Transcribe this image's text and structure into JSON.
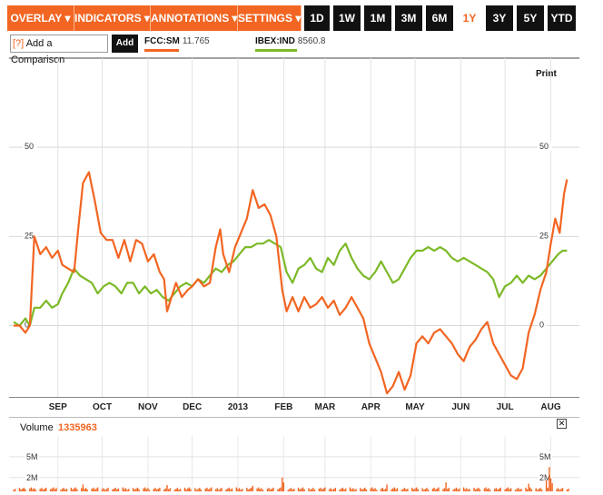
{
  "toolbar": {
    "menus": [
      "OVERLAY ▾",
      "INDICATORS ▾",
      "ANNOTATIONS ▾",
      "SETTINGS ▾"
    ],
    "ranges": [
      "1D",
      "1W",
      "1M",
      "3M",
      "6M",
      "1Y",
      "3Y",
      "5Y",
      "YTD"
    ],
    "active_range": "1Y"
  },
  "comparison": {
    "help": "[?]",
    "placeholder": "Add a Comparison",
    "add_label": "Add"
  },
  "legend": [
    {
      "ticker": "FCC:SM",
      "value": "11.765",
      "color": "#f26522"
    },
    {
      "ticker": "IBEX:IND",
      "value": "8560.8",
      "color": "#7cb928"
    }
  ],
  "print_label": "Print",
  "volume": {
    "label": "Volume",
    "value": "1335963"
  },
  "close_glyph": "✕",
  "chart_data": [
    {
      "type": "line",
      "y_ticks": [
        "50",
        "25",
        "0"
      ],
      "ylim": [
        -20,
        75
      ],
      "x_ticks": [
        "SEP",
        "OCT",
        "NOV",
        "DEC",
        "2013",
        "FEB",
        "MAR",
        "APR",
        "MAY",
        "JUN",
        "JUL",
        "AUG"
      ],
      "x_tick_dates": [
        "2012-09-01",
        "2012-10-01",
        "2012-11-01",
        "2012-12-01",
        "2013-01-01",
        "2013-02-01",
        "2013-03-01",
        "2013-04-01",
        "2013-05-01",
        "2013-06-01",
        "2013-07-01",
        "2013-08-01"
      ],
      "xlim": [
        "2012-08-02",
        "2013-08-13"
      ],
      "grid": true,
      "series": [
        {
          "name": "FCC:SM",
          "color": "#f26522",
          "points": [
            [
              "2012-08-02",
              0
            ],
            [
              "2012-08-06",
              0
            ],
            [
              "2012-08-10",
              -2
            ],
            [
              "2012-08-13",
              0
            ],
            [
              "2012-08-16",
              25
            ],
            [
              "2012-08-20",
              20
            ],
            [
              "2012-08-24",
              22
            ],
            [
              "2012-08-28",
              19
            ],
            [
              "2012-09-01",
              21
            ],
            [
              "2012-09-04",
              17
            ],
            [
              "2012-09-08",
              16
            ],
            [
              "2012-09-12",
              15
            ],
            [
              "2012-09-15",
              28
            ],
            [
              "2012-09-18",
              40
            ],
            [
              "2012-09-22",
              43
            ],
            [
              "2012-09-26",
              35
            ],
            [
              "2012-09-30",
              26
            ],
            [
              "2012-10-04",
              24
            ],
            [
              "2012-10-08",
              24
            ],
            [
              "2012-10-12",
              19
            ],
            [
              "2012-10-16",
              24
            ],
            [
              "2012-10-20",
              18
            ],
            [
              "2012-10-24",
              24
            ],
            [
              "2012-10-28",
              23
            ],
            [
              "2012-11-01",
              18
            ],
            [
              "2012-11-05",
              20
            ],
            [
              "2012-11-09",
              15
            ],
            [
              "2012-11-12",
              13
            ],
            [
              "2012-11-14",
              4
            ],
            [
              "2012-11-17",
              8
            ],
            [
              "2012-11-20",
              12
            ],
            [
              "2012-11-24",
              8
            ],
            [
              "2012-11-28",
              10
            ],
            [
              "2012-12-01",
              11
            ],
            [
              "2012-12-05",
              13
            ],
            [
              "2012-12-09",
              11
            ],
            [
              "2012-12-13",
              12
            ],
            [
              "2012-12-17",
              22
            ],
            [
              "2012-12-20",
              27
            ],
            [
              "2012-12-22",
              20
            ],
            [
              "2012-12-26",
              15
            ],
            [
              "2012-12-30",
              22
            ],
            [
              "2013-01-03",
              26
            ],
            [
              "2013-01-07",
              30
            ],
            [
              "2013-01-11",
              38
            ],
            [
              "2013-01-15",
              33
            ],
            [
              "2013-01-19",
              34
            ],
            [
              "2013-01-23",
              31
            ],
            [
              "2013-01-27",
              25
            ],
            [
              "2013-01-31",
              10
            ],
            [
              "2013-02-03",
              4
            ],
            [
              "2013-02-07",
              8
            ],
            [
              "2013-02-11",
              4
            ],
            [
              "2013-02-15",
              8
            ],
            [
              "2013-02-19",
              5
            ],
            [
              "2013-02-23",
              6
            ],
            [
              "2013-02-27",
              8
            ],
            [
              "2013-03-03",
              5
            ],
            [
              "2013-03-07",
              7
            ],
            [
              "2013-03-11",
              3
            ],
            [
              "2013-03-15",
              5
            ],
            [
              "2013-03-19",
              8
            ],
            [
              "2013-03-23",
              5
            ],
            [
              "2013-03-27",
              2
            ],
            [
              "2013-03-31",
              -5
            ],
            [
              "2013-04-04",
              -9
            ],
            [
              "2013-04-08",
              -13
            ],
            [
              "2013-04-12",
              -19
            ],
            [
              "2013-04-16",
              -17
            ],
            [
              "2013-04-20",
              -13
            ],
            [
              "2013-04-24",
              -18
            ],
            [
              "2013-04-28",
              -14
            ],
            [
              "2013-05-02",
              -5
            ],
            [
              "2013-05-06",
              -3
            ],
            [
              "2013-05-10",
              -5
            ],
            [
              "2013-05-14",
              -2
            ],
            [
              "2013-05-18",
              -1
            ],
            [
              "2013-05-22",
              -3
            ],
            [
              "2013-05-26",
              -5
            ],
            [
              "2013-05-30",
              -8
            ],
            [
              "2013-06-03",
              -10
            ],
            [
              "2013-06-07",
              -6
            ],
            [
              "2013-06-11",
              -4
            ],
            [
              "2013-06-15",
              -1
            ],
            [
              "2013-06-19",
              1
            ],
            [
              "2013-06-23",
              -5
            ],
            [
              "2013-06-27",
              -8
            ],
            [
              "2013-07-01",
              -11
            ],
            [
              "2013-07-05",
              -14
            ],
            [
              "2013-07-09",
              -15
            ],
            [
              "2013-07-13",
              -12
            ],
            [
              "2013-07-17",
              -2
            ],
            [
              "2013-07-21",
              3
            ],
            [
              "2013-07-25",
              10
            ],
            [
              "2013-07-29",
              15
            ],
            [
              "2013-08-01",
              23
            ],
            [
              "2013-08-04",
              30
            ],
            [
              "2013-08-07",
              26
            ],
            [
              "2013-08-10",
              37
            ],
            [
              "2013-08-12",
              41
            ]
          ]
        },
        {
          "name": "IBEX:IND",
          "color": "#7cb928",
          "points": [
            [
              "2012-08-02",
              1
            ],
            [
              "2012-08-06",
              0
            ],
            [
              "2012-08-10",
              2
            ],
            [
              "2012-08-13",
              0
            ],
            [
              "2012-08-16",
              5
            ],
            [
              "2012-08-20",
              5
            ],
            [
              "2012-08-24",
              7
            ],
            [
              "2012-08-28",
              5
            ],
            [
              "2012-09-01",
              6
            ],
            [
              "2012-09-04",
              9
            ],
            [
              "2012-09-08",
              12
            ],
            [
              "2012-09-12",
              16
            ],
            [
              "2012-09-16",
              14
            ],
            [
              "2012-09-20",
              13
            ],
            [
              "2012-09-24",
              12
            ],
            [
              "2012-09-28",
              9
            ],
            [
              "2012-10-02",
              11
            ],
            [
              "2012-10-06",
              12
            ],
            [
              "2012-10-10",
              11
            ],
            [
              "2012-10-14",
              9
            ],
            [
              "2012-10-18",
              12
            ],
            [
              "2012-10-22",
              12
            ],
            [
              "2012-10-26",
              9
            ],
            [
              "2012-10-30",
              11
            ],
            [
              "2012-11-03",
              9
            ],
            [
              "2012-11-07",
              10
            ],
            [
              "2012-11-11",
              8
            ],
            [
              "2012-11-15",
              7
            ],
            [
              "2012-11-19",
              9
            ],
            [
              "2012-11-23",
              11
            ],
            [
              "2012-11-27",
              12
            ],
            [
              "2012-12-01",
              11
            ],
            [
              "2012-12-05",
              13
            ],
            [
              "2012-12-09",
              12
            ],
            [
              "2012-12-13",
              14
            ],
            [
              "2012-12-17",
              16
            ],
            [
              "2012-12-21",
              15
            ],
            [
              "2012-12-25",
              17
            ],
            [
              "2012-12-29",
              18
            ],
            [
              "2013-01-02",
              20
            ],
            [
              "2013-01-06",
              22
            ],
            [
              "2013-01-10",
              22
            ],
            [
              "2013-01-14",
              23
            ],
            [
              "2013-01-18",
              23
            ],
            [
              "2013-01-22",
              24
            ],
            [
              "2013-01-26",
              23
            ],
            [
              "2013-01-30",
              22
            ],
            [
              "2013-02-03",
              15
            ],
            [
              "2013-02-07",
              12
            ],
            [
              "2013-02-11",
              16
            ],
            [
              "2013-02-15",
              17
            ],
            [
              "2013-02-19",
              19
            ],
            [
              "2013-02-23",
              16
            ],
            [
              "2013-02-27",
              15
            ],
            [
              "2013-03-03",
              19
            ],
            [
              "2013-03-07",
              17
            ],
            [
              "2013-03-11",
              21
            ],
            [
              "2013-03-15",
              23
            ],
            [
              "2013-03-19",
              19
            ],
            [
              "2013-03-23",
              16
            ],
            [
              "2013-03-27",
              14
            ],
            [
              "2013-03-31",
              13
            ],
            [
              "2013-04-04",
              15
            ],
            [
              "2013-04-08",
              18
            ],
            [
              "2013-04-12",
              15
            ],
            [
              "2013-04-16",
              12
            ],
            [
              "2013-04-20",
              13
            ],
            [
              "2013-04-24",
              16
            ],
            [
              "2013-04-28",
              19
            ],
            [
              "2013-05-02",
              21
            ],
            [
              "2013-05-06",
              21
            ],
            [
              "2013-05-10",
              22
            ],
            [
              "2013-05-14",
              21
            ],
            [
              "2013-05-18",
              22
            ],
            [
              "2013-05-22",
              21
            ],
            [
              "2013-05-26",
              19
            ],
            [
              "2013-05-30",
              18
            ],
            [
              "2013-06-03",
              19
            ],
            [
              "2013-06-07",
              18
            ],
            [
              "2013-06-11",
              17
            ],
            [
              "2013-06-15",
              16
            ],
            [
              "2013-06-19",
              15
            ],
            [
              "2013-06-23",
              13
            ],
            [
              "2013-06-27",
              8
            ],
            [
              "2013-07-01",
              11
            ],
            [
              "2013-07-05",
              12
            ],
            [
              "2013-07-09",
              14
            ],
            [
              "2013-07-13",
              12
            ],
            [
              "2013-07-17",
              14
            ],
            [
              "2013-07-21",
              13
            ],
            [
              "2013-07-25",
              14
            ],
            [
              "2013-07-29",
              16
            ],
            [
              "2013-08-02",
              18
            ],
            [
              "2013-08-06",
              20
            ],
            [
              "2013-08-09",
              21
            ],
            [
              "2013-08-12",
              21
            ]
          ]
        }
      ]
    },
    {
      "type": "bar",
      "name": "Volume",
      "y_ticks": [
        "5M",
        "2M"
      ],
      "ylim": [
        0,
        8
      ],
      "unit": "M",
      "color": "#f26522",
      "xlim": [
        "2012-08-02",
        "2013-08-13"
      ],
      "baseline": 0.4,
      "spikes": [
        [
          "2012-09-18",
          1.0
        ],
        [
          "2012-11-14",
          0.9
        ],
        [
          "2013-01-11",
          0.8
        ],
        [
          "2013-01-31",
          2.0
        ],
        [
          "2013-02-01",
          1.3
        ],
        [
          "2013-04-12",
          1.0
        ],
        [
          "2013-05-22",
          1.3
        ],
        [
          "2013-07-17",
          1.1
        ],
        [
          "2013-07-29",
          1.6
        ],
        [
          "2013-07-31",
          3.5
        ],
        [
          "2013-08-01",
          1.9
        ],
        [
          "2013-08-02",
          1.2
        ],
        [
          "2013-08-10",
          1.7
        ]
      ]
    }
  ]
}
